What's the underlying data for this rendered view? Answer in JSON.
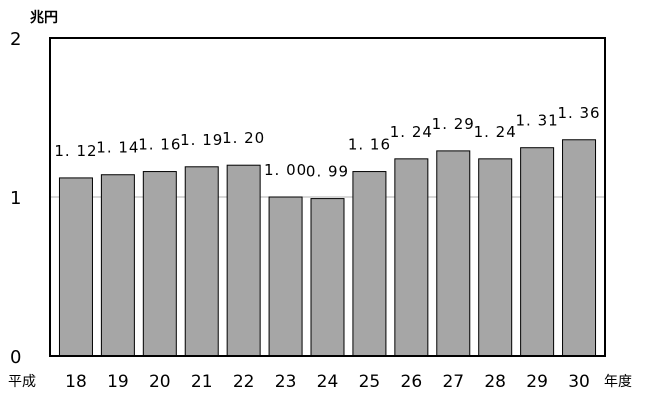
{
  "chart_data": {
    "type": "bar",
    "title": "",
    "unit_label": "兆円",
    "x_prefix": "平成",
    "x_suffix": "年度",
    "categories": [
      "18",
      "19",
      "20",
      "21",
      "22",
      "23",
      "24",
      "25",
      "26",
      "27",
      "28",
      "29",
      "30"
    ],
    "values": [
      1.12,
      1.14,
      1.16,
      1.19,
      1.2,
      1.0,
      0.99,
      1.16,
      1.24,
      1.29,
      1.24,
      1.31,
      1.36
    ],
    "value_labels": [
      "1. 12",
      "1. 14",
      "1. 16",
      "1. 19",
      "1. 20",
      "1. 00",
      "0. 99",
      "1. 16",
      "1. 24",
      "1. 29",
      "1. 24",
      "1. 31",
      "1. 36"
    ],
    "yticks": [
      "0",
      "1",
      "2"
    ],
    "ylim": [
      0,
      2
    ],
    "grid": "horizontal at 1",
    "legend": "none",
    "bar_color": "#a6a6a6",
    "grid_color": "#b0b0b0"
  }
}
